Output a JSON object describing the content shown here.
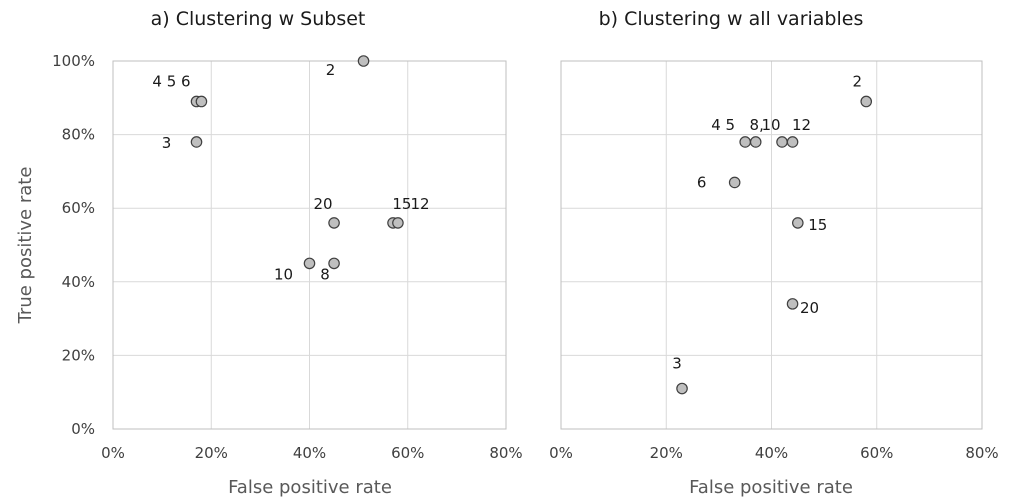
{
  "chart_data": [
    {
      "type": "scatter",
      "title": "a) Clustering  w Subset",
      "xlabel": "False positive rate",
      "ylabel": "True positive rate",
      "xlim": [
        0,
        0.8
      ],
      "ylim": [
        0,
        1.0
      ],
      "xticks": [
        "0%",
        "20%",
        "40%",
        "60%",
        "80%"
      ],
      "yticks": [
        "0%",
        "20%",
        "40%",
        "60%",
        "80%",
        "100%"
      ],
      "grid": true,
      "points": [
        {
          "label": "2",
          "x": 0.51,
          "y": 1.0
        },
        {
          "label": "4 5 6",
          "x": 0.17,
          "y": 0.89
        },
        {
          "label": "",
          "x": 0.18,
          "y": 0.89
        },
        {
          "label": "3",
          "x": 0.17,
          "y": 0.78
        },
        {
          "label": "20",
          "x": 0.45,
          "y": 0.56
        },
        {
          "label": "12",
          "x": 0.57,
          "y": 0.56
        },
        {
          "label": "15",
          "x": 0.58,
          "y": 0.56
        },
        {
          "label": "10",
          "x": 0.4,
          "y": 0.45
        },
        {
          "label": "8",
          "x": 0.45,
          "y": 0.45
        }
      ]
    },
    {
      "type": "scatter",
      "title": "b) Clustering  w all variables",
      "xlabel": "False positive rate",
      "xlim": [
        0,
        0.8
      ],
      "ylim": [
        0,
        1.0
      ],
      "xticks": [
        "0%",
        "20%",
        "40%",
        "60%",
        "80%"
      ],
      "grid": true,
      "points": [
        {
          "label": "2",
          "x": 0.58,
          "y": 0.89
        },
        {
          "label": "4 5",
          "x": 0.35,
          "y": 0.78
        },
        {
          "label": "8,",
          "x": 0.37,
          "y": 0.78
        },
        {
          "label": "10",
          "x": 0.42,
          "y": 0.78
        },
        {
          "label": "12",
          "x": 0.44,
          "y": 0.78
        },
        {
          "label": "6",
          "x": 0.33,
          "y": 0.67
        },
        {
          "label": "15",
          "x": 0.45,
          "y": 0.56
        },
        {
          "label": "20",
          "x": 0.44,
          "y": 0.34
        },
        {
          "label": "3",
          "x": 0.23,
          "y": 0.11
        }
      ]
    }
  ]
}
